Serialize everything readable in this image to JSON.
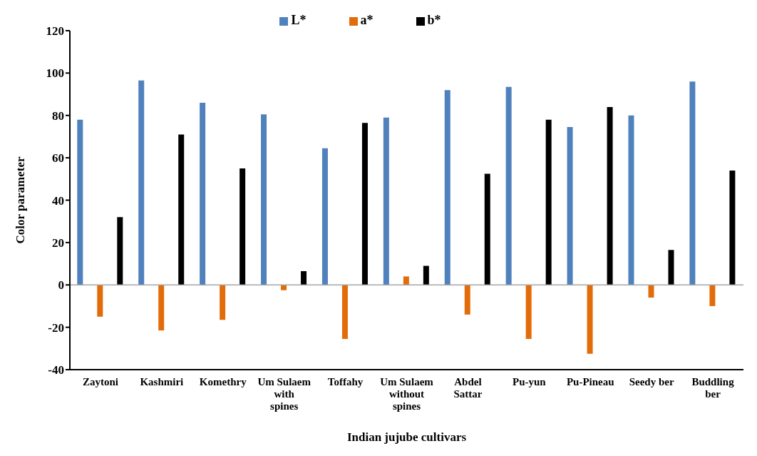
{
  "chart_data": {
    "type": "bar",
    "xlabel": "Indian jujube cultivars",
    "ylabel": "Color parameter",
    "categories": [
      "Zaytoni",
      "Kashmiri",
      "Komethry",
      "Um Sulaem with spines",
      "Toffahy",
      "Um Sulaem without spines",
      "Abdel Sattar",
      "Pu-yun",
      "Pu-Pineau",
      "Seedy ber",
      "Buddling ber"
    ],
    "series": [
      {
        "name": "L*",
        "color": "#4f81bd",
        "values": [
          78,
          96.5,
          86,
          80.5,
          64.5,
          79,
          92,
          93.5,
          74.5,
          80,
          96
        ]
      },
      {
        "name": "a*",
        "color": "#e36c0a",
        "values": [
          -15,
          -21.5,
          -16.5,
          -2.5,
          -25.5,
          4,
          -14,
          -25.5,
          -32.5,
          -6,
          -10
        ]
      },
      {
        "name": "b*",
        "color": "#000000",
        "values": [
          32,
          71,
          55,
          6.5,
          76.5,
          9,
          52.5,
          78,
          84,
          16.5,
          54
        ]
      }
    ],
    "ylim": [
      -40,
      120
    ],
    "yticks": [
      -40,
      -20,
      0,
      20,
      40,
      60,
      80,
      100,
      120
    ],
    "ref_lines": [
      {
        "axis": "y",
        "value": 0,
        "color": "#a6a6a6"
      }
    ],
    "grid": false,
    "legend": "top"
  }
}
